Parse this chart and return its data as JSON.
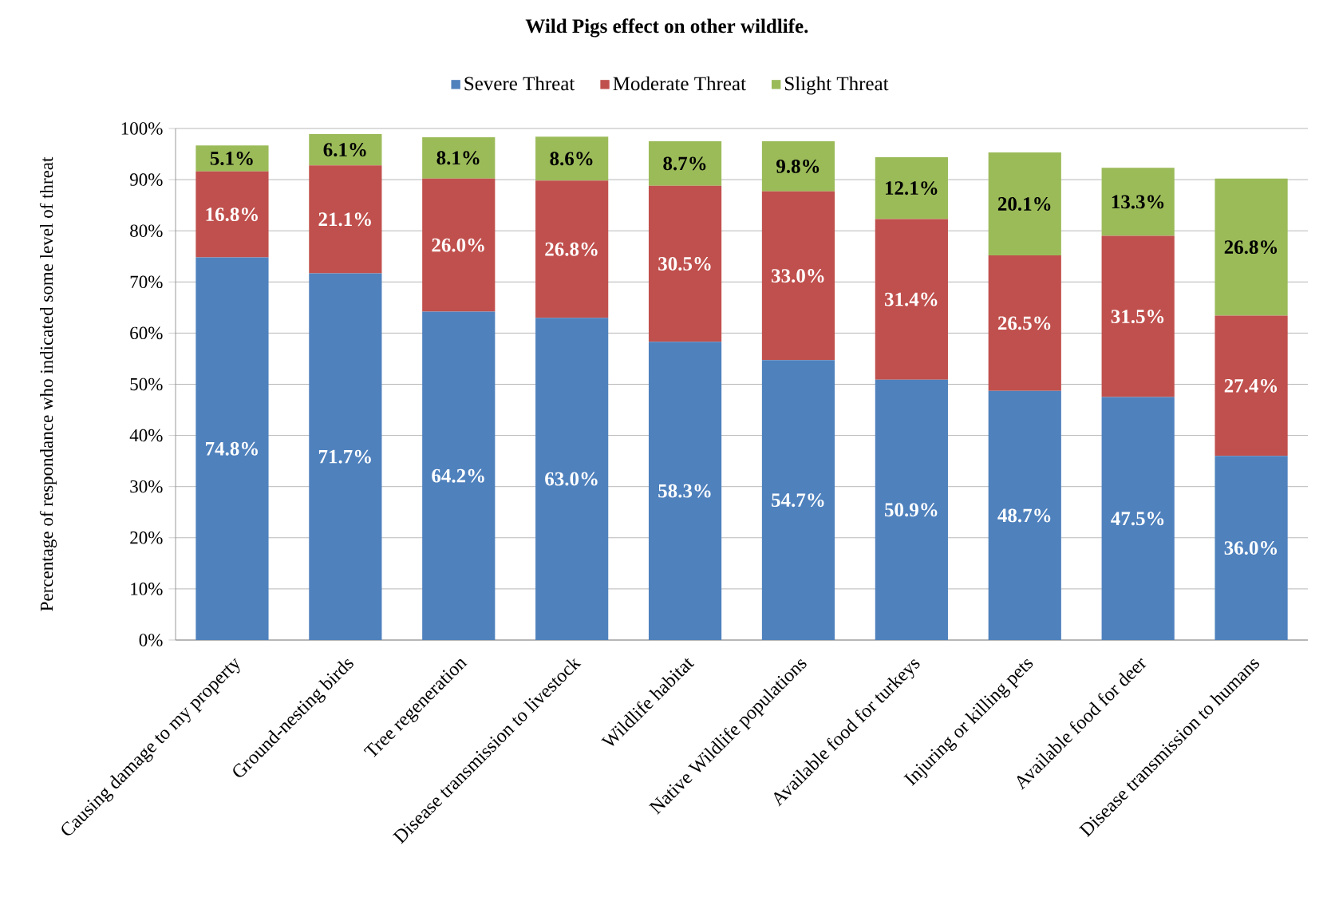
{
  "chart_data": {
    "type": "bar",
    "stacked": true,
    "title": "Wild Pigs effect on other wildlife.",
    "ylabel": "Percentage of respondance who indicated some level of threat",
    "categories": [
      "Causing damage to my property",
      "Ground-nesting birds",
      "Tree regeneration",
      "Disease transmission to livestock",
      "Wildlife habitat",
      "Native Wildlife populations",
      "Available food for turkeys",
      "Injuring or killing pets",
      "Available food for deer",
      "Disease transmission to humans"
    ],
    "series": [
      {
        "name": "Severe Threat",
        "color": "#4f81bd",
        "values": [
          74.8,
          71.7,
          64.2,
          63.0,
          58.3,
          54.7,
          50.9,
          48.7,
          47.5,
          36.0
        ],
        "value_labels": [
          "74.8%",
          "71.7%",
          "64.2%",
          "63.0%",
          "58.3%",
          "54.7%",
          "50.9%",
          "48.7%",
          "47.5%",
          "36.0%"
        ]
      },
      {
        "name": "Moderate Threat",
        "color": "#c0504d",
        "values": [
          16.8,
          21.1,
          26.0,
          26.8,
          30.5,
          33.0,
          31.4,
          26.5,
          31.5,
          27.4
        ],
        "value_labels": [
          "16.8%",
          "21.1%",
          "26.0%",
          "26.8%",
          "30.5%",
          "33.0%",
          "31.4%",
          "26.5%",
          "31.5%",
          "27.4%"
        ]
      },
      {
        "name": "Slight Threat",
        "color": "#9bbb59",
        "values": [
          5.1,
          6.1,
          8.1,
          8.6,
          8.7,
          9.8,
          12.1,
          20.1,
          13.3,
          26.8
        ],
        "value_labels": [
          "5.1%",
          "6.1%",
          "8.1%",
          "8.6%",
          "8.7%",
          "9.8%",
          "12.1%",
          "20.1%",
          "13.3%",
          "26.8%"
        ]
      }
    ],
    "ylim": [
      0,
      100
    ],
    "yticks": [
      {
        "value": 0,
        "label": "0%"
      },
      {
        "value": 10,
        "label": "10%"
      },
      {
        "value": 20,
        "label": "20%"
      },
      {
        "value": 30,
        "label": "30%"
      },
      {
        "value": 40,
        "label": "40%"
      },
      {
        "value": 50,
        "label": "50%"
      },
      {
        "value": 60,
        "label": "60%"
      },
      {
        "value": 70,
        "label": "70%"
      },
      {
        "value": 80,
        "label": "80%"
      },
      {
        "value": 90,
        "label": "90%"
      },
      {
        "value": 100,
        "label": "100%"
      }
    ],
    "grid": "y",
    "legend": "top"
  }
}
